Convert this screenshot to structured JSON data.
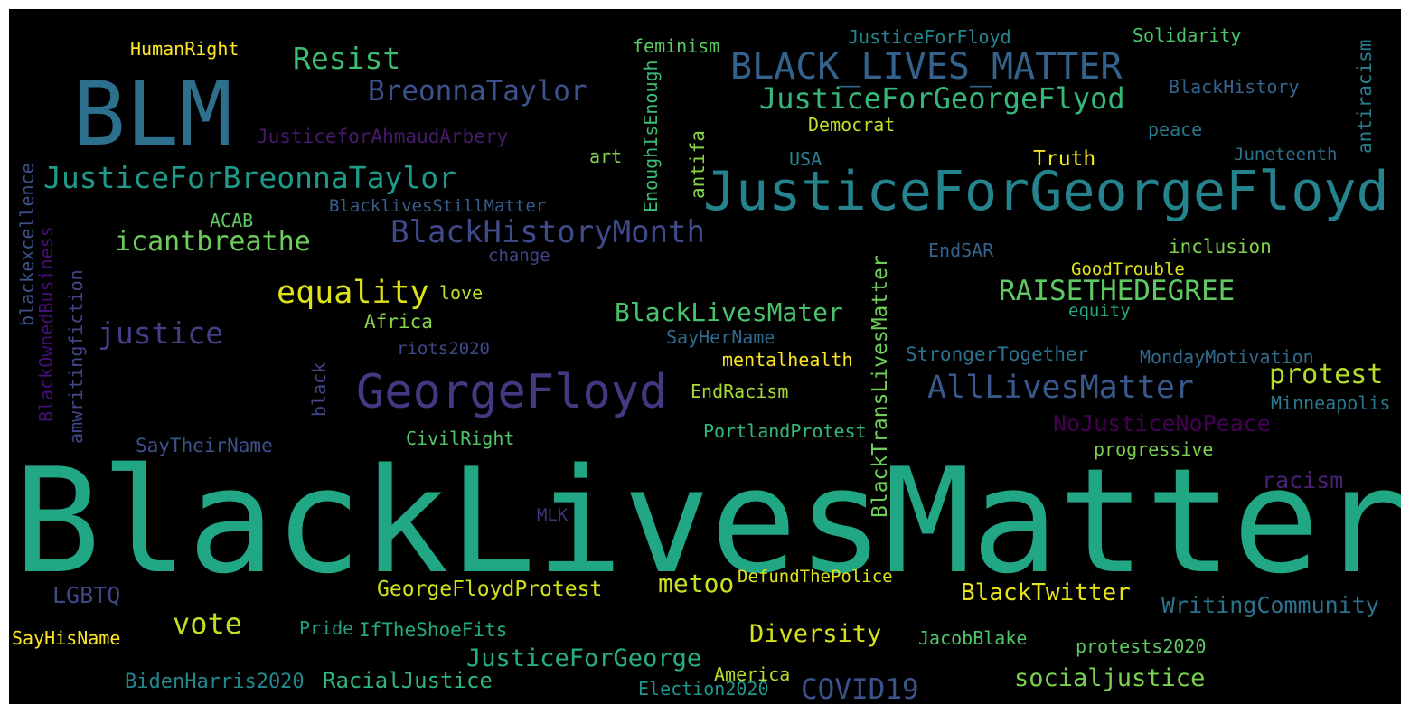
{
  "palette": {
    "background": "#000000",
    "frame": "#ffffff",
    "viridis": [
      "#440154",
      "#3b528b",
      "#21908d",
      "#5dc963",
      "#fde725"
    ]
  },
  "words": [
    {
      "text": "BlackLivesMatter",
      "color": "#22a785"
    },
    {
      "text": "BLM",
      "color": "#2d708e"
    },
    {
      "text": "JusticeForGeorgeFloyd",
      "color": "#25838e"
    },
    {
      "text": "BLACK_LIVES_MATTER",
      "color": "#33638d"
    },
    {
      "text": "GeorgeFloyd",
      "color": "#453781"
    },
    {
      "text": "JusticeForBreonnaTaylor",
      "color": "#1f9a8a"
    },
    {
      "text": "JusticeForGeorgeFlyod",
      "color": "#35b779"
    },
    {
      "text": "BreonnaTaylor",
      "color": "#3b528b"
    },
    {
      "text": "BlackHistoryMonth",
      "color": "#3e4a89"
    },
    {
      "text": "Resist",
      "color": "#3dbc74"
    },
    {
      "text": "icantbreathe",
      "color": "#6ccd5a"
    },
    {
      "text": "equality",
      "color": "#dde318"
    },
    {
      "text": "justice",
      "color": "#433e85"
    },
    {
      "text": "RAISETHEDEGREE",
      "color": "#5ec962"
    },
    {
      "text": "AllLivesMatter",
      "color": "#38588c"
    },
    {
      "text": "protest",
      "color": "#b5de2b"
    },
    {
      "text": "BlackLivesMater",
      "color": "#4ac16d"
    },
    {
      "text": "NoJusticeNoPeace",
      "color": "#440154"
    },
    {
      "text": "racism",
      "color": "#482173"
    },
    {
      "text": "BlackTransLivesMatter",
      "color": "#6ece58"
    },
    {
      "text": "vote",
      "color": "#c2df23"
    },
    {
      "text": "LGBTQ",
      "color": "#3f4788"
    },
    {
      "text": "GeorgeFloydProtest",
      "color": "#d0e11c"
    },
    {
      "text": "metoo",
      "color": "#c8e020"
    },
    {
      "text": "BlackTwitter",
      "color": "#e7e419"
    },
    {
      "text": "WritingCommunity",
      "color": "#2c728e"
    },
    {
      "text": "Diversity",
      "color": "#d8e219"
    },
    {
      "text": "JusticeForGeorge",
      "color": "#29af7f"
    },
    {
      "text": "COVID19",
      "color": "#3b528b"
    },
    {
      "text": "socialjustice",
      "color": "#7ad151"
    },
    {
      "text": "RacialJustice",
      "color": "#2fb47c"
    },
    {
      "text": "BidenHarris2020",
      "color": "#23888e"
    },
    {
      "text": "Election2020",
      "color": "#1f958b"
    },
    {
      "text": "America",
      "color": "#b5de2b"
    },
    {
      "text": "protests2020",
      "color": "#5ec962"
    },
    {
      "text": "JacobBlake",
      "color": "#52c569"
    },
    {
      "text": "IfTheShoeFits",
      "color": "#25ab82"
    },
    {
      "text": "Pride",
      "color": "#20a386"
    },
    {
      "text": "SayHisName",
      "color": "#fde725"
    },
    {
      "text": "DefundThePolice",
      "color": "#dde318"
    },
    {
      "text": "MLK",
      "color": "#46307e"
    },
    {
      "text": "SayTheirName",
      "color": "#3b528b"
    },
    {
      "text": "CivilRight",
      "color": "#52c569"
    },
    {
      "text": "PortlandProtest",
      "color": "#35b779"
    },
    {
      "text": "progressive",
      "color": "#7ad151"
    },
    {
      "text": "EndRacism",
      "color": "#a5db36"
    },
    {
      "text": "mentalhealth",
      "color": "#fde725"
    },
    {
      "text": "Minneapolis",
      "color": "#2a788e"
    },
    {
      "text": "MondayMotivation",
      "color": "#306a8e"
    },
    {
      "text": "StrongerTogether",
      "color": "#2c728e"
    },
    {
      "text": "SayHerName",
      "color": "#31688e"
    },
    {
      "text": "riots2020",
      "color": "#3e4a89"
    },
    {
      "text": "Africa",
      "color": "#86d549"
    },
    {
      "text": "love",
      "color": "#b8de29"
    },
    {
      "text": "equity",
      "color": "#22a884"
    },
    {
      "text": "GoodTrouble",
      "color": "#e2e418"
    },
    {
      "text": "inclusion",
      "color": "#7fd34e"
    },
    {
      "text": "EndSAR",
      "color": "#33638d"
    },
    {
      "text": "change",
      "color": "#404688"
    },
    {
      "text": "ACAB",
      "color": "#5ec962"
    },
    {
      "text": "BlacklivesStillMatter",
      "color": "#365d8d"
    },
    {
      "text": "USA",
      "color": "#26828e"
    },
    {
      "text": "art",
      "color": "#84d44b"
    },
    {
      "text": "Truth",
      "color": "#f1e51d"
    },
    {
      "text": "Juneteenth",
      "color": "#2d708e"
    },
    {
      "text": "peace",
      "color": "#2a788e"
    },
    {
      "text": "BlackHistory",
      "color": "#33638d"
    },
    {
      "text": "Democrat",
      "color": "#c0df25"
    },
    {
      "text": "JusticeforAhmaudArbery",
      "color": "#481a6c"
    },
    {
      "text": "HumanRight",
      "color": "#fde725"
    },
    {
      "text": "feminism",
      "color": "#5ec962"
    },
    {
      "text": "JusticeForFloyd",
      "color": "#25858e"
    },
    {
      "text": "Solidarity",
      "color": "#4ec36b"
    },
    {
      "text": "antiracism",
      "color": "#277f8e"
    },
    {
      "text": "EnoughIsEnough",
      "color": "#3dbc74"
    },
    {
      "text": "antifa",
      "color": "#84d44b"
    },
    {
      "text": "blackexcellence",
      "color": "#3b528b"
    },
    {
      "text": "BlackOwnedBusiness",
      "color": "#440f76"
    },
    {
      "text": "amwritingfiction",
      "color": "#404688"
    },
    {
      "text": "black",
      "color": "#414487"
    }
  ]
}
